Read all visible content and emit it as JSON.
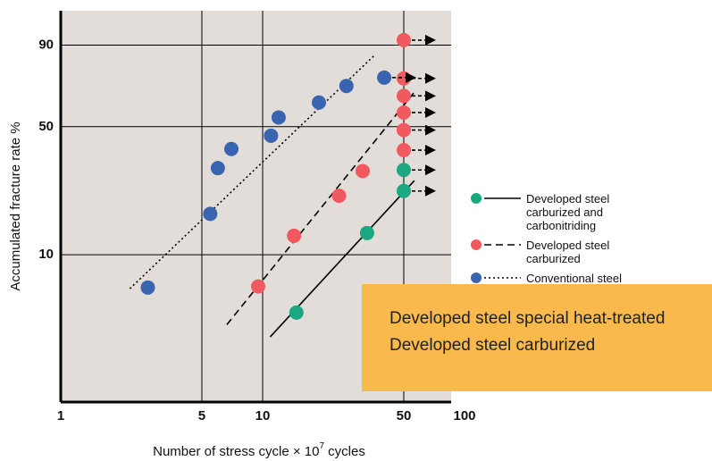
{
  "chart_data": {
    "type": "scatter",
    "xlabel": {
      "text": "Number of stress cycle × 10",
      "sup": "7",
      "tail": " cycles"
    },
    "ylabel": "Accumulated fracture rate %",
    "xscale": "log",
    "yscale": "weibull",
    "xlim": [
      1,
      100
    ],
    "ylim": [
      1.2,
      97.8
    ],
    "xticks": [
      1,
      5,
      10,
      50,
      100
    ],
    "yticks": [
      10,
      50,
      90
    ],
    "grid": true,
    "legend": "right",
    "series": [
      {
        "name": "Developed steel carburized and carbonitriding",
        "color": "#1aa882",
        "line": "solid",
        "x": [
          14.7,
          32.9,
          50,
          50
        ],
        "values": [
          4.4,
          13.5,
          23.6,
          30.7
        ],
        "fit": {
          "x": [
            10.9,
            56.4
          ],
          "values": [
            3.1,
            26.9
          ]
        }
      },
      {
        "name": "Developed steel carburized",
        "color": "#f05a5f",
        "line": "dashed",
        "x": [
          9.5,
          14.3,
          23.9,
          31.3,
          50,
          50,
          50,
          50,
          50,
          50
        ],
        "values": [
          6.4,
          13.0,
          22.2,
          30.3,
          38.8,
          48.3,
          57.4,
          66.4,
          75.6,
          91.6
        ],
        "fit": {
          "x": [
            6.65,
            56.6
          ],
          "values": [
            3.7,
            68.6
          ]
        }
      },
      {
        "name": "Conventional steel carburized",
        "color": "#3a63b0",
        "line": "dotted",
        "x": [
          2.7,
          5.5,
          6,
          7,
          11,
          12,
          19,
          26,
          40
        ],
        "values": [
          6.3,
          17.5,
          31.4,
          39.3,
          45.5,
          54.8,
          62.8,
          71.7,
          76
        ],
        "fit": {
          "x": [
            2.2,
            35.9
          ],
          "values": [
            6.2,
            86.3
          ]
        }
      }
    ],
    "overlay": {
      "lines": [
        "Developed steel special heat-treated",
        "Developed steel carburized"
      ]
    }
  }
}
